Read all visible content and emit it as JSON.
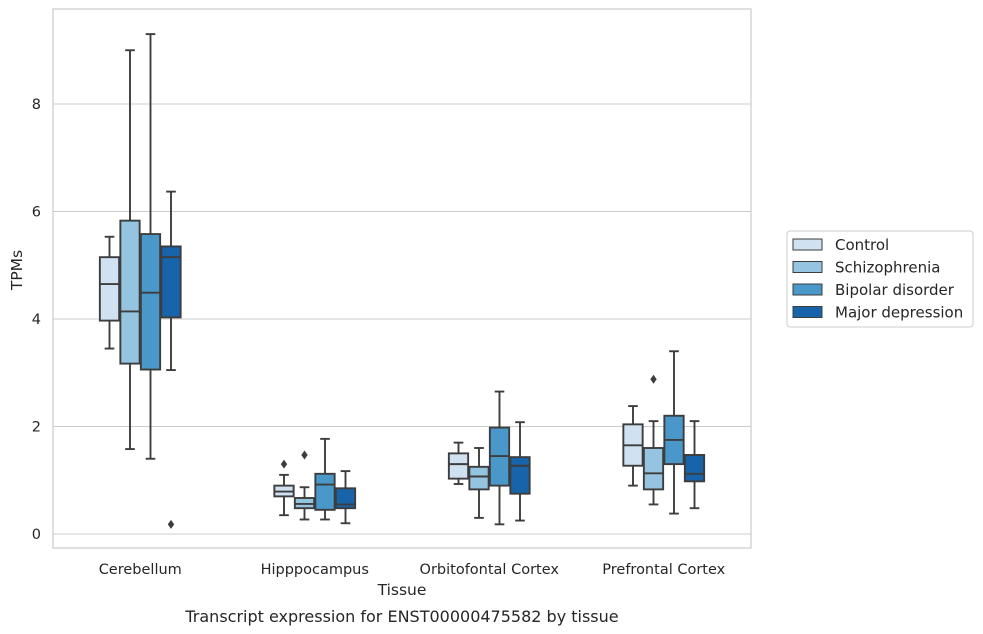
{
  "caption": "Transcript expression for ENST00000475582 by tissue",
  "chart_data": {
    "type": "box",
    "xlabel": "Tissue",
    "ylabel": "TPMs",
    "ylim": [
      -0.25,
      9.75
    ],
    "yticks": [
      0,
      2,
      4,
      6,
      8
    ],
    "grid": "horizontal",
    "legend_placement": "right",
    "categories": [
      "Cerebellum",
      "Hipppocampus",
      "Orbitofontal Cortex",
      "Prefrontal Cortex"
    ],
    "series": [
      {
        "name": "Control",
        "color": "#d0e1f2",
        "boxes": [
          {
            "whislo": 3.45,
            "q1": 3.97,
            "med": 4.65,
            "q3": 5.15,
            "whishi": 5.53,
            "fliers": []
          },
          {
            "whislo": 0.35,
            "q1": 0.7,
            "med": 0.79,
            "q3": 0.9,
            "whishi": 1.1,
            "fliers": [
              1.3
            ]
          },
          {
            "whislo": 0.93,
            "q1": 1.03,
            "med": 1.3,
            "q3": 1.5,
            "whishi": 1.7,
            "fliers": []
          },
          {
            "whislo": 0.9,
            "q1": 1.27,
            "med": 1.65,
            "q3": 2.04,
            "whishi": 2.38,
            "fliers": []
          }
        ]
      },
      {
        "name": "Schizophrenia",
        "color": "#94c4df",
        "boxes": [
          {
            "whislo": 1.58,
            "q1": 3.17,
            "med": 4.14,
            "q3": 5.83,
            "whishi": 9.0,
            "fliers": []
          },
          {
            "whislo": 0.27,
            "q1": 0.48,
            "med": 0.56,
            "q3": 0.67,
            "whishi": 0.87,
            "fliers": [
              1.47
            ]
          },
          {
            "whislo": 0.3,
            "q1": 0.83,
            "med": 1.07,
            "q3": 1.25,
            "whishi": 1.6,
            "fliers": []
          },
          {
            "whislo": 0.55,
            "q1": 0.83,
            "med": 1.13,
            "q3": 1.6,
            "whishi": 2.1,
            "fliers": [
              2.88
            ]
          }
        ]
      },
      {
        "name": "Bipolar disorder",
        "color": "#4a98c9",
        "boxes": [
          {
            "whislo": 1.4,
            "q1": 3.06,
            "med": 4.49,
            "q3": 5.58,
            "whishi": 9.3,
            "fliers": []
          },
          {
            "whislo": 0.27,
            "q1": 0.45,
            "med": 0.92,
            "q3": 1.12,
            "whishi": 1.77,
            "fliers": []
          },
          {
            "whislo": 0.18,
            "q1": 0.9,
            "med": 1.45,
            "q3": 1.98,
            "whishi": 2.65,
            "fliers": []
          },
          {
            "whislo": 0.38,
            "q1": 1.3,
            "med": 1.75,
            "q3": 2.2,
            "whishi": 3.4,
            "fliers": []
          }
        ]
      },
      {
        "name": "Major depression",
        "color": "#1764ab",
        "boxes": [
          {
            "whislo": 3.05,
            "q1": 4.03,
            "med": 5.15,
            "q3": 5.35,
            "whishi": 6.37,
            "fliers": [
              0.18
            ]
          },
          {
            "whislo": 0.2,
            "q1": 0.48,
            "med": 0.55,
            "q3": 0.85,
            "whishi": 1.17,
            "fliers": []
          },
          {
            "whislo": 0.25,
            "q1": 0.75,
            "med": 1.27,
            "q3": 1.43,
            "whishi": 2.08,
            "fliers": []
          },
          {
            "whislo": 0.48,
            "q1": 0.98,
            "med": 1.12,
            "q3": 1.47,
            "whishi": 2.1,
            "fliers": []
          }
        ]
      }
    ]
  }
}
